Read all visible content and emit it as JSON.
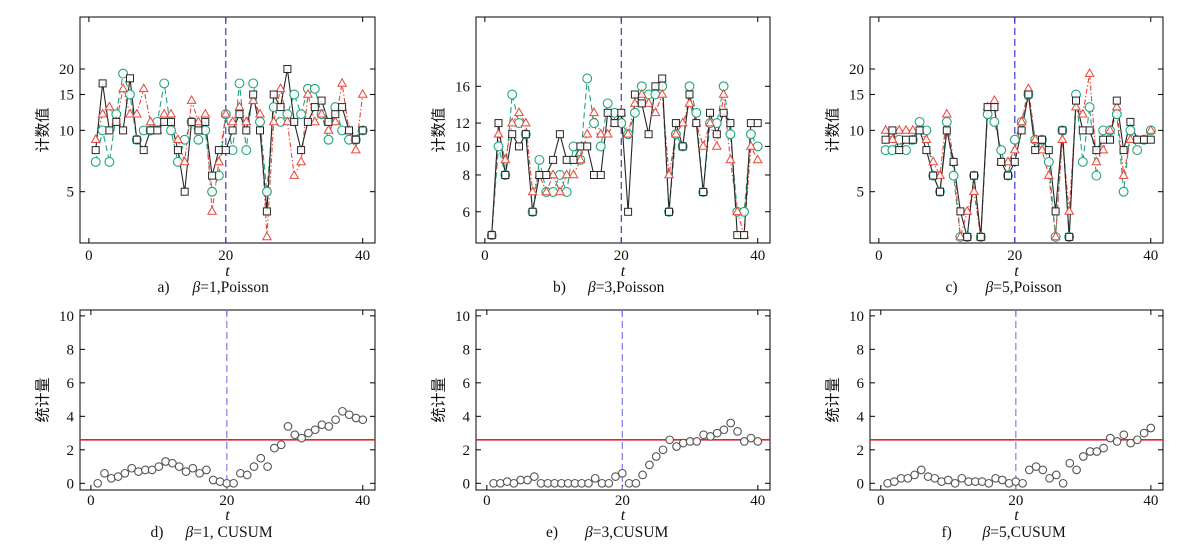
{
  "chart_data": [
    {
      "type": "line",
      "label": "a)",
      "title": "β=1,Poisson",
      "xlabel": "t",
      "ylabel": "计数值",
      "log_y": true,
      "xlim": [
        -1.3,
        41.8
      ],
      "ylim": [
        2.8,
        36
      ],
      "xticks": [
        0,
        20,
        40
      ],
      "yticks": [
        5,
        10,
        15,
        20
      ],
      "change_point": 20,
      "change_point_color": "#3b3bd6",
      "x": [
        1,
        2,
        3,
        4,
        5,
        6,
        7,
        8,
        9,
        10,
        11,
        12,
        13,
        14,
        15,
        16,
        17,
        18,
        19,
        20,
        21,
        22,
        23,
        24,
        25,
        26,
        27,
        28,
        29,
        30,
        31,
        32,
        33,
        34,
        35,
        36,
        37,
        38,
        39,
        40
      ],
      "series": [
        {
          "color": "#262626",
          "values": [
            8,
            17,
            10,
            11,
            10,
            18,
            9,
            8,
            10,
            10,
            11,
            11,
            8,
            5,
            11,
            10,
            11,
            6,
            8,
            8,
            10,
            12,
            10,
            15,
            10,
            4,
            15,
            13,
            20,
            11,
            8,
            11,
            13,
            14,
            11,
            12,
            13,
            10,
            9,
            10
          ]
        },
        {
          "color": "#e8463c",
          "values": [
            9,
            12,
            13,
            11,
            16,
            12,
            12,
            16,
            11,
            10,
            12,
            12,
            9,
            7,
            14,
            11,
            12,
            4,
            7,
            12,
            11,
            13,
            11,
            14,
            12,
            3,
            11,
            16,
            11,
            6,
            7,
            15,
            11,
            12,
            10,
            11,
            17,
            10,
            8,
            15
          ]
        },
        {
          "color": "#1fa57e",
          "values": [
            7,
            10,
            7,
            12,
            19,
            15,
            9,
            10,
            10,
            11,
            17,
            10,
            7,
            9,
            11,
            9,
            10,
            5,
            6,
            12,
            8,
            17,
            8,
            17,
            11,
            5,
            13,
            11,
            12,
            15,
            12,
            16,
            16,
            12,
            9,
            13,
            10,
            9,
            9,
            10
          ]
        }
      ]
    },
    {
      "type": "line",
      "label": "b)",
      "title": "β=3,Poisson",
      "xlabel": "t",
      "ylabel": "计数值",
      "log_y": true,
      "xlim": [
        -1.3,
        41.8
      ],
      "ylim": [
        4.7,
        27.5
      ],
      "xticks": [
        0,
        20,
        40
      ],
      "yticks": [
        6,
        8,
        10,
        12,
        16
      ],
      "change_point": 20,
      "change_point_color": "#3b3bd6",
      "x": [
        1,
        2,
        3,
        4,
        5,
        6,
        7,
        8,
        9,
        10,
        11,
        12,
        13,
        14,
        15,
        16,
        17,
        18,
        19,
        20,
        21,
        22,
        23,
        24,
        25,
        26,
        27,
        28,
        29,
        30,
        31,
        32,
        33,
        34,
        35,
        36,
        37,
        38,
        39,
        40
      ],
      "series": [
        {
          "color": "#262626",
          "values": [
            5,
            12,
            8,
            11,
            10,
            11,
            6,
            8,
            8,
            9,
            11,
            9,
            9,
            10,
            10,
            8,
            8,
            13,
            12,
            13,
            6,
            15,
            14,
            11,
            16,
            17,
            6,
            12,
            10,
            15,
            12,
            7,
            13,
            11,
            13,
            12,
            5,
            5,
            12,
            12
          ]
        },
        {
          "color": "#e8463c",
          "values": [
            5,
            11,
            9,
            12,
            13,
            12,
            7,
            8,
            7,
            8,
            7,
            8,
            8,
            9,
            11,
            13,
            11,
            11,
            12,
            13,
            11,
            14,
            15,
            14,
            13,
            15,
            8,
            11,
            12,
            14,
            12,
            10,
            12,
            10,
            15,
            9,
            6,
            5,
            10,
            9
          ]
        },
        {
          "color": "#1fa57e",
          "values": [
            5,
            10,
            8,
            15,
            12,
            11,
            6,
            9,
            7,
            7,
            8,
            7,
            10,
            9,
            17,
            12,
            10,
            14,
            13,
            12,
            11,
            13,
            16,
            15,
            15,
            16,
            6,
            11,
            10,
            16,
            13,
            7,
            12,
            12,
            16,
            11,
            6,
            6,
            11,
            10
          ]
        }
      ]
    },
    {
      "type": "line",
      "label": "c)",
      "title": "β=5,Poisson",
      "xlabel": "t",
      "ylabel": "计数值",
      "log_y": true,
      "xlim": [
        -1.3,
        41.8
      ],
      "ylim": [
        2.8,
        36
      ],
      "xticks": [
        0,
        20,
        40
      ],
      "yticks": [
        5,
        10,
        15,
        20
      ],
      "change_point": 20,
      "change_point_color": "#3b3bd6",
      "x": [
        1,
        2,
        3,
        4,
        5,
        6,
        7,
        8,
        9,
        10,
        11,
        12,
        13,
        14,
        15,
        16,
        17,
        18,
        19,
        20,
        21,
        22,
        23,
        24,
        25,
        26,
        27,
        28,
        29,
        30,
        31,
        32,
        33,
        34,
        35,
        36,
        37,
        38,
        39,
        40
      ],
      "series": [
        {
          "color": "#262626",
          "values": [
            9,
            10,
            8,
            9,
            9,
            10,
            8,
            6,
            5,
            10,
            7,
            4,
            3,
            6,
            3,
            13,
            13,
            7,
            6,
            7,
            10,
            15,
            8,
            9,
            8,
            4,
            10,
            3,
            14,
            10,
            10,
            8,
            9,
            9,
            14,
            8,
            11,
            9,
            9,
            9
          ]
        },
        {
          "color": "#e8463c",
          "values": [
            10,
            9,
            10,
            10,
            10,
            10,
            9,
            7,
            6,
            12,
            7,
            3,
            4,
            5,
            3,
            13,
            14,
            7,
            7,
            8,
            11,
            16,
            9,
            8,
            6,
            3,
            9,
            4,
            13,
            12,
            19,
            7,
            8,
            10,
            13,
            6,
            9,
            9,
            9,
            10
          ]
        },
        {
          "color": "#1fa57e",
          "values": [
            8,
            8,
            9,
            8,
            9,
            11,
            10,
            6,
            5,
            11,
            6,
            3,
            3,
            6,
            3,
            12,
            11,
            8,
            6,
            9,
            11,
            15,
            9,
            9,
            7,
            3,
            10,
            3,
            15,
            7,
            13,
            6,
            10,
            10,
            12,
            5,
            10,
            8,
            9,
            10
          ]
        }
      ]
    },
    {
      "type": "scatter",
      "label": "d)",
      "title": "β=1, CUSUM",
      "xlabel": "t",
      "ylabel": "统计量",
      "log_y": false,
      "xlim": [
        -1.6,
        41.8
      ],
      "ylim": [
        -0.4,
        10.35
      ],
      "xticks": [
        0,
        20,
        40
      ],
      "yticks": [
        0,
        2,
        4,
        6,
        8,
        10
      ],
      "change_point": 20,
      "change_point_color": "#7f7fe8",
      "threshold": 2.6,
      "threshold_color": "#e3262b",
      "x": [
        1,
        2,
        3,
        4,
        5,
        6,
        7,
        8,
        9,
        10,
        11,
        12,
        13,
        14,
        15,
        16,
        17,
        18,
        19,
        20,
        21,
        22,
        23,
        24,
        25,
        26,
        27,
        28,
        29,
        30,
        31,
        32,
        33,
        34,
        35,
        36,
        37,
        38,
        39,
        40
      ],
      "series": [
        {
          "color": "#555555",
          "values": [
            0,
            0.6,
            0.3,
            0.4,
            0.6,
            0.9,
            0.7,
            0.8,
            0.8,
            1.0,
            1.3,
            1.2,
            1.0,
            0.7,
            0.9,
            0.6,
            0.8,
            0.2,
            0.1,
            0,
            0,
            0.6,
            0.5,
            1.0,
            1.5,
            1.0,
            2.1,
            2.3,
            3.4,
            2.9,
            2.7,
            3.0,
            3.2,
            3.5,
            3.4,
            3.8,
            4.3,
            4.1,
            3.9,
            3.8
          ]
        }
      ]
    },
    {
      "type": "scatter",
      "label": "e)",
      "title": "β=3,CUSUM",
      "xlabel": "t",
      "ylabel": "统计量",
      "log_y": false,
      "xlim": [
        -1.6,
        41.8
      ],
      "ylim": [
        -0.4,
        10.35
      ],
      "xticks": [
        0,
        20,
        40
      ],
      "yticks": [
        0,
        2,
        4,
        6,
        8,
        10
      ],
      "change_point": 20,
      "change_point_color": "#7f7fe8",
      "threshold": 2.6,
      "threshold_color": "#e3262b",
      "x": [
        1,
        2,
        3,
        4,
        5,
        6,
        7,
        8,
        9,
        10,
        11,
        12,
        13,
        14,
        15,
        16,
        17,
        18,
        19,
        20,
        21,
        22,
        23,
        24,
        25,
        26,
        27,
        28,
        29,
        30,
        31,
        32,
        33,
        34,
        35,
        36,
        37,
        38,
        39,
        40
      ],
      "series": [
        {
          "color": "#555555",
          "values": [
            0,
            0,
            0.1,
            0,
            0.2,
            0.2,
            0.4,
            0,
            0,
            0,
            0,
            0,
            0,
            0,
            0,
            0.3,
            0,
            0,
            0.4,
            0.6,
            0,
            0,
            0.5,
            1.1,
            1.6,
            2.0,
            2.6,
            2.2,
            2.4,
            2.5,
            2.5,
            2.9,
            2.8,
            3.0,
            3.2,
            3.6,
            3.1,
            2.5,
            2.7,
            2.5
          ]
        }
      ]
    },
    {
      "type": "scatter",
      "label": "f)",
      "title": "β=5,CUSUM",
      "xlabel": "t",
      "ylabel": "统计量",
      "log_y": false,
      "xlim": [
        -1.6,
        41.8
      ],
      "ylim": [
        -0.4,
        10.35
      ],
      "xticks": [
        0,
        20,
        40
      ],
      "yticks": [
        0,
        2,
        4,
        6,
        8,
        10
      ],
      "change_point": 20,
      "change_point_color": "#7f7fe8",
      "threshold": 2.6,
      "threshold_color": "#e3262b",
      "x": [
        1,
        2,
        3,
        4,
        5,
        6,
        7,
        8,
        9,
        10,
        11,
        12,
        13,
        14,
        15,
        16,
        17,
        18,
        19,
        20,
        21,
        22,
        23,
        24,
        25,
        26,
        27,
        28,
        29,
        30,
        31,
        32,
        33,
        34,
        35,
        36,
        37,
        38,
        39,
        40
      ],
      "series": [
        {
          "color": "#555555",
          "values": [
            0,
            0.1,
            0.3,
            0.3,
            0.5,
            0.8,
            0.4,
            0.3,
            0.1,
            0.2,
            0,
            0.3,
            0.1,
            0.1,
            0.1,
            0,
            0.3,
            0.2,
            0,
            0.1,
            0,
            0.8,
            1.0,
            0.8,
            0.3,
            0.5,
            0,
            1.2,
            0.8,
            1.6,
            1.9,
            1.9,
            2.1,
            2.7,
            2.5,
            2.9,
            2.4,
            2.6,
            3.0,
            3.3
          ]
        }
      ]
    }
  ]
}
